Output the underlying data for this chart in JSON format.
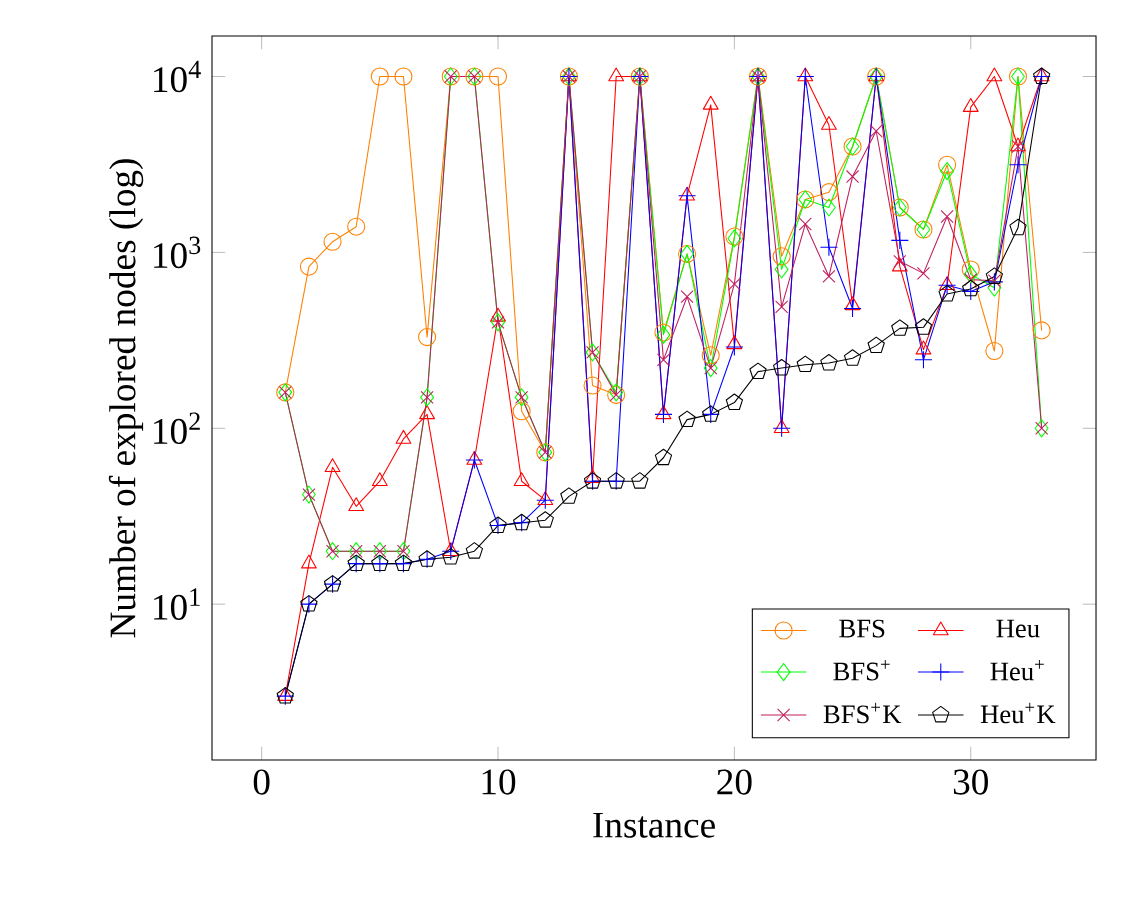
{
  "chart_data": {
    "type": "line",
    "xlabel": "Instance",
    "ylabel": "Number of explored nodes (log)",
    "log": "y",
    "xlim": [
      -2.1,
      35.3
    ],
    "ylim": [
      1.3,
      17000
    ],
    "xticks": [
      0,
      10,
      20,
      30
    ],
    "yticks": [
      {
        "value": 10,
        "label": "10$^{1}$"
      },
      {
        "value": 100,
        "label": "10$^{2}$"
      },
      {
        "value": 1000,
        "label": "10$^{3}$"
      },
      {
        "value": 10000,
        "label": "10$^{4}$"
      }
    ],
    "legend": "bottom right",
    "grid": false,
    "x": [
      1,
      2,
      3,
      4,
      5,
      6,
      7,
      8,
      9,
      10,
      11,
      12,
      13,
      14,
      15,
      16,
      17,
      18,
      19,
      20,
      21,
      22,
      23,
      24,
      25,
      26,
      27,
      28,
      29,
      30,
      31,
      32,
      33
    ],
    "series": [
      {
        "name": "BFS",
        "color": "#ff8000",
        "marker": "circle",
        "values": [
          160,
          830,
          1150,
          1400,
          10000,
          10000,
          330,
          10000,
          10000,
          10000,
          125,
          73,
          10000,
          175,
          155,
          10000,
          350,
          980,
          260,
          1230,
          10000,
          950,
          2000,
          2200,
          4000,
          10000,
          1800,
          1350,
          3150,
          800,
          275,
          10000,
          360
        ]
      },
      {
        "name": "Heu",
        "color": "#ff0000",
        "marker": "triangle",
        "values": [
          3,
          17,
          60,
          36,
          50,
          87,
          120,
          20,
          66,
          430,
          50,
          39,
          10000,
          52,
          10000,
          10000,
          120,
          2100,
          6900,
          300,
          10000,
          100,
          10000,
          5300,
          500,
          10000,
          830,
          280,
          650,
          6700,
          10000,
          4000,
          10000
        ]
      },
      {
        "name": "BFS$^{+}$",
        "color": "#00ff00",
        "marker": "diamond",
        "values": [
          160,
          42,
          20,
          20,
          20,
          20,
          150,
          10000,
          10000,
          400,
          150,
          73,
          10000,
          270,
          160,
          10000,
          340,
          980,
          220,
          1200,
          10000,
          800,
          2000,
          1800,
          4000,
          10000,
          1800,
          1350,
          2900,
          750,
          630,
          10000,
          100
        ]
      },
      {
        "name": "Heu$^{+}$",
        "color": "#0000ff",
        "marker": "cross",
        "values": [
          3,
          10,
          13,
          17,
          17,
          17,
          18,
          20,
          66,
          28,
          29,
          39,
          10000,
          50,
          50,
          10000,
          120,
          2100,
          120,
          290,
          10000,
          100,
          10000,
          1070,
          480,
          10000,
          1170,
          245,
          650,
          600,
          680,
          3150,
          10000
        ]
      },
      {
        "name": "BFS$^{+}$K",
        "color": "#bf1f5f",
        "marker": "x",
        "values": [
          160,
          42,
          20,
          20,
          20,
          20,
          150,
          10000,
          10000,
          400,
          150,
          73,
          10000,
          270,
          155,
          10000,
          245,
          560,
          220,
          660,
          10000,
          490,
          1450,
          730,
          2700,
          4900,
          890,
          760,
          1600,
          700,
          690,
          4000,
          100
        ]
      },
      {
        "name": "Heu$^{+}$K",
        "color": "#000000",
        "marker": "star",
        "values": [
          3,
          10,
          13,
          17,
          17,
          17,
          18,
          18.5,
          20,
          28,
          29,
          30,
          41,
          50,
          50,
          50,
          68,
          112,
          120,
          140,
          210,
          220,
          230,
          235,
          250,
          295,
          370,
          375,
          580,
          620,
          730,
          1380,
          10000
        ]
      }
    ]
  }
}
